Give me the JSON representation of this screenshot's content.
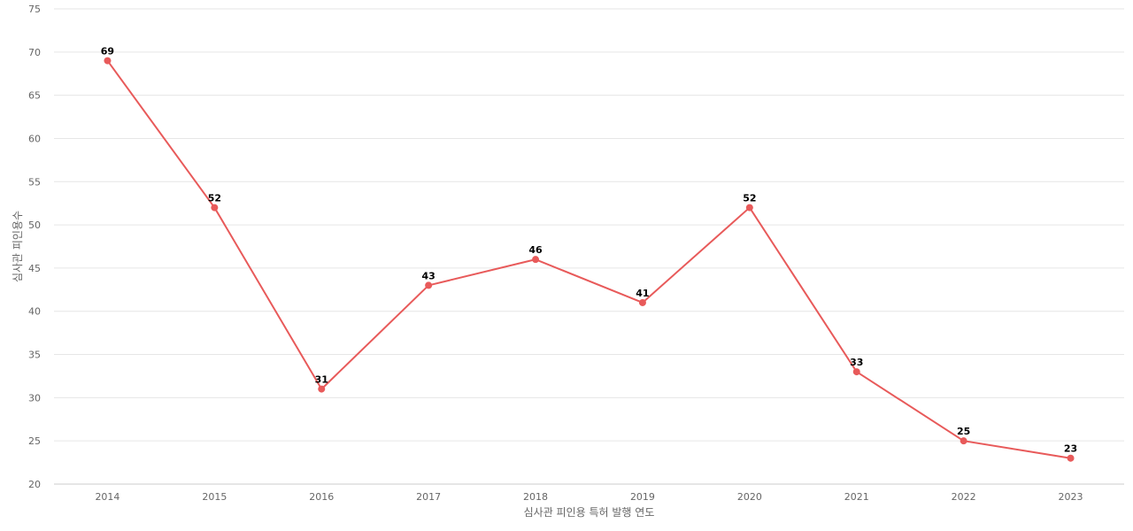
{
  "chart_data": {
    "type": "line",
    "x": [
      "2014",
      "2015",
      "2016",
      "2017",
      "2018",
      "2019",
      "2020",
      "2021",
      "2022",
      "2023"
    ],
    "series": [
      {
        "values": [
          69,
          52,
          31,
          43,
          46,
          41,
          52,
          33,
          25,
          23
        ],
        "color": "#e85a5a"
      }
    ],
    "xlabel": "심사관 피인용 특허 발행 연도",
    "ylabel": "심사관 피인용수",
    "ylim": [
      20,
      75
    ],
    "yticks": [
      20,
      25,
      30,
      35,
      40,
      45,
      50,
      55,
      60,
      65,
      70,
      75
    ],
    "grid": true,
    "data_labels": true,
    "legend": "none"
  }
}
